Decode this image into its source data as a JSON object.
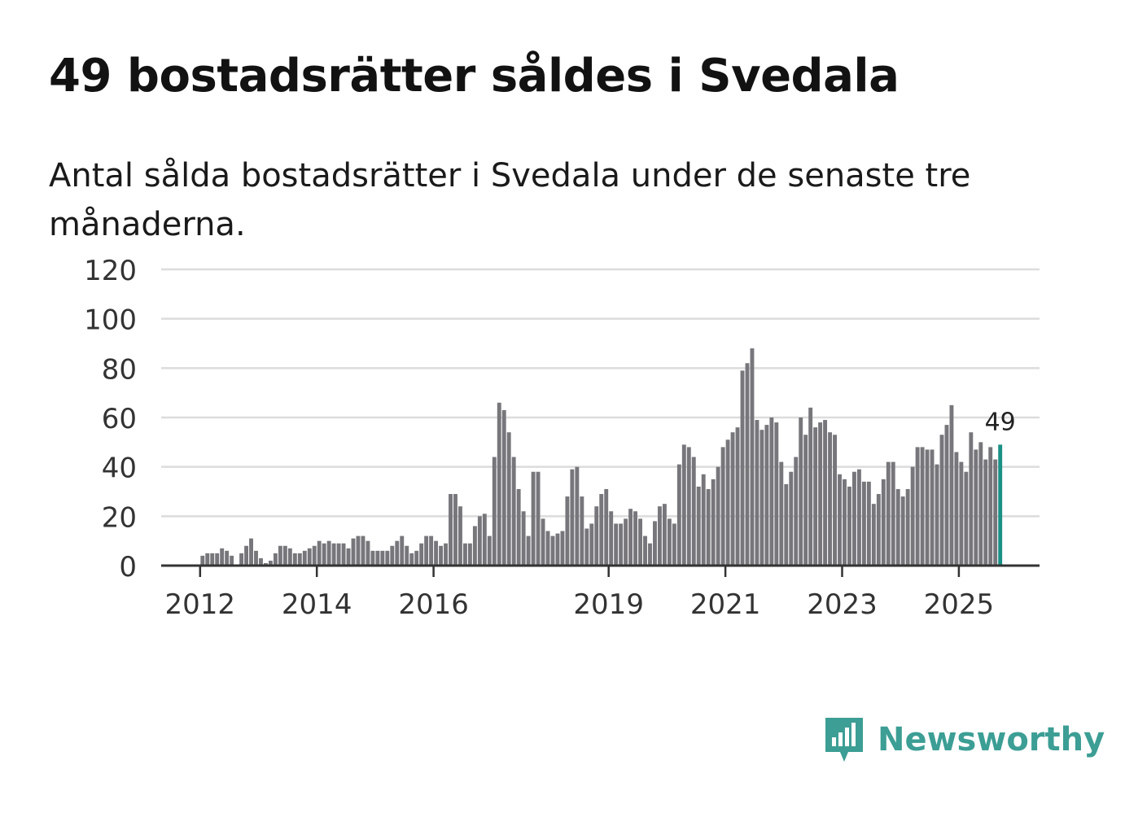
{
  "header": {
    "title": "49 bostadsrätter såldes i Svedala",
    "subtitle": "Antal sålda bostadsrätter i Svedala under de senaste tre månaderna."
  },
  "brand": {
    "name": "Newsworthy",
    "color": "#3c9e95"
  },
  "colors": {
    "bar": "#77767b",
    "highlight": "#1a9187",
    "grid": "#dcdcdc",
    "axis": "#333333",
    "text": "#333333"
  },
  "chart_data": {
    "type": "bar",
    "title": "49 bostadsrätter såldes i Svedala",
    "subtitle": "Antal sålda bostadsrätter i Svedala under de senaste tre månaderna.",
    "xlabel": "",
    "ylabel": "",
    "ylim": [
      0,
      120
    ],
    "yticks": [
      0,
      20,
      40,
      60,
      80,
      100,
      120
    ],
    "x_tick_labels": [
      "2012",
      "2014",
      "2016",
      "2019",
      "2021",
      "2023",
      "2025"
    ],
    "start": "2011-05",
    "annotation": {
      "label": "49",
      "target": "last"
    },
    "values": [
      0,
      0,
      0,
      0,
      0,
      0,
      0,
      0,
      4,
      5,
      5,
      5,
      7,
      6,
      4,
      0,
      5,
      8,
      11,
      6,
      3,
      1,
      2,
      5,
      8,
      8,
      7,
      5,
      5,
      6,
      7,
      8,
      10,
      9,
      10,
      9,
      9,
      9,
      7,
      11,
      12,
      12,
      10,
      6,
      6,
      6,
      6,
      8,
      10,
      12,
      8,
      5,
      6,
      9,
      12,
      12,
      10,
      8,
      9,
      29,
      29,
      24,
      9,
      9,
      16,
      20,
      21,
      12,
      44,
      66,
      63,
      54,
      44,
      31,
      22,
      12,
      38,
      38,
      19,
      14,
      12,
      13,
      14,
      28,
      39,
      40,
      28,
      15,
      17,
      24,
      29,
      31,
      22,
      17,
      17,
      19,
      23,
      22,
      19,
      12,
      9,
      18,
      24,
      25,
      19,
      17,
      41,
      49,
      48,
      44,
      32,
      37,
      31,
      35,
      40,
      48,
      51,
      54,
      56,
      79,
      82,
      88,
      59,
      55,
      57,
      60,
      58,
      42,
      33,
      38,
      44,
      60,
      53,
      64,
      56,
      58,
      59,
      54,
      53,
      37,
      35,
      32,
      38,
      39,
      34,
      34,
      25,
      29,
      35,
      42,
      42,
      31,
      28,
      31,
      40,
      48,
      48,
      47,
      47,
      41,
      53,
      57,
      65,
      46,
      42,
      38,
      54,
      47,
      50,
      43,
      48,
      43,
      49
    ]
  }
}
